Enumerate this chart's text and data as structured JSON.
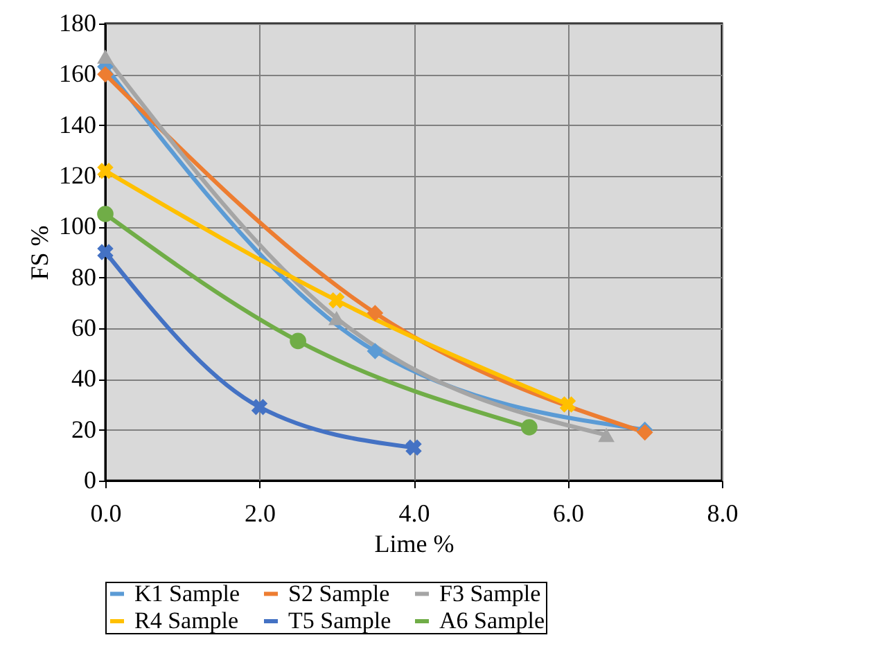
{
  "chart_data": {
    "type": "line",
    "xlabel": "Lime %",
    "ylabel": "FS  %",
    "xlim": [
      0,
      8
    ],
    "xticks": [
      {
        "value": 0,
        "label": "0.0"
      },
      {
        "value": 2,
        "label": "2.0"
      },
      {
        "value": 4,
        "label": "4.0"
      },
      {
        "value": 6,
        "label": "6.0"
      },
      {
        "value": 8,
        "label": "8.0"
      }
    ],
    "ylim": [
      0,
      180
    ],
    "yticks": [
      0,
      20,
      40,
      60,
      80,
      100,
      120,
      140,
      160,
      180
    ],
    "grid": true,
    "legend": "bottom",
    "series": [
      {
        "name": "K1 Sample",
        "color": "#5b9bd5",
        "marker": "diamond",
        "x": [
          0,
          3.5,
          7
        ],
        "values": [
          163,
          51,
          20
        ]
      },
      {
        "name": "S2 Sample",
        "color": "#ed7d31",
        "marker": "diamond",
        "x": [
          0,
          3.5,
          7
        ],
        "values": [
          160,
          66,
          19
        ]
      },
      {
        "name": "F3 Sample",
        "color": "#a5a5a5",
        "marker": "triangle",
        "x": [
          0,
          3,
          6.5
        ],
        "values": [
          167,
          64,
          18
        ]
      },
      {
        "name": "R4 Sample",
        "color": "#ffc000",
        "marker": "cross",
        "x": [
          0,
          3,
          6
        ],
        "values": [
          122,
          71,
          30
        ]
      },
      {
        "name": "T5 Sample",
        "color": "#4472c4",
        "marker": "cross",
        "x": [
          0,
          2,
          4
        ],
        "values": [
          90,
          29,
          13
        ]
      },
      {
        "name": "A6 Sample",
        "color": "#70ad47",
        "marker": "circle",
        "x": [
          0,
          2.5,
          5.5
        ],
        "values": [
          105,
          55,
          21
        ]
      }
    ]
  }
}
